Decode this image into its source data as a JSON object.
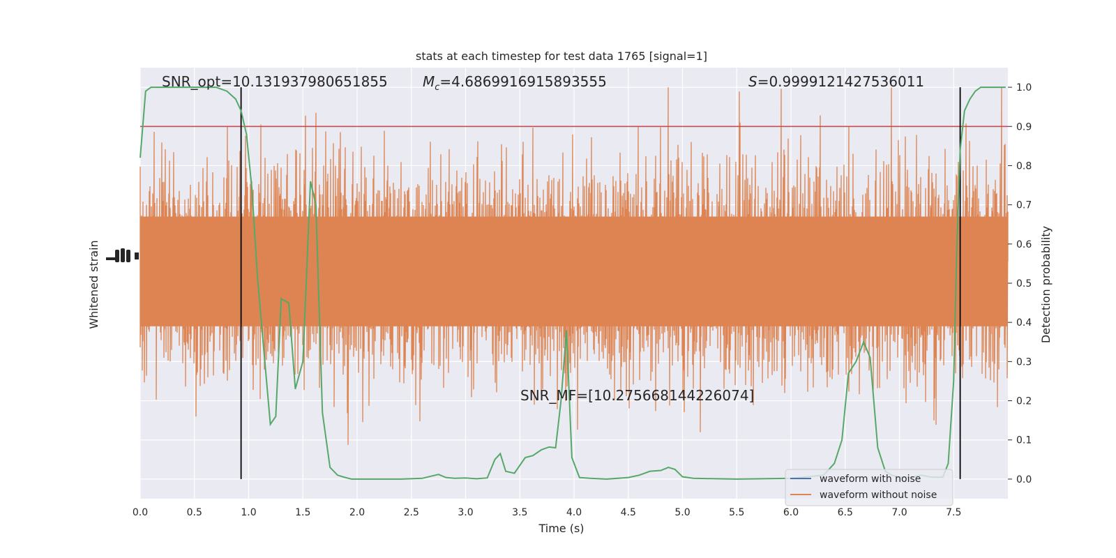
{
  "chart_data": {
    "type": "line",
    "title": "stats at each timestep for test data 1765 [signal=1]",
    "xlabel": "Time (s)",
    "ylabel_left": "Whitened strain",
    "ylabel_right": "Detection probability",
    "xlim": [
      0.0,
      8.0
    ],
    "ylim_right": [
      -0.05,
      1.05
    ],
    "xticks": [
      "0.0",
      "0.5",
      "1.0",
      "1.5",
      "2.0",
      "2.5",
      "3.0",
      "3.5",
      "4.0",
      "4.5",
      "5.0",
      "5.5",
      "6.0",
      "6.5",
      "7.0",
      "7.5"
    ],
    "yticks_right": [
      "0.0",
      "0.1",
      "0.2",
      "0.3",
      "0.4",
      "0.5",
      "0.6",
      "0.7",
      "0.8",
      "0.9",
      "1.0"
    ],
    "grid": true,
    "legend_placement": "lower-right",
    "annotations": {
      "snr_opt": "SNR_opt=10.131937980651855",
      "mc_symbol": "M",
      "mc_sub": "c",
      "mc_value": "=4.6869916915893555",
      "s_symbol": "S",
      "s_value": "=0.9999121427536011",
      "snr_mf": "SNR_MF=[10.275668144226074]"
    },
    "threshold": 0.9,
    "vertical_lines": [
      0.93,
      7.56
    ],
    "series": [
      {
        "name": "waveform with noise",
        "color": "#4c72b0"
      },
      {
        "name": "waveform without noise",
        "color": "#dd8452"
      }
    ],
    "probability": {
      "color": "#55a868",
      "x": [
        0.0,
        0.05,
        0.1,
        0.2,
        0.3,
        0.4,
        0.5,
        0.6,
        0.7,
        0.8,
        0.88,
        0.93,
        0.98,
        1.03,
        1.08,
        1.13,
        1.2,
        1.25,
        1.3,
        1.37,
        1.43,
        1.5,
        1.57,
        1.62,
        1.68,
        1.75,
        1.82,
        1.88,
        1.95,
        2.0,
        2.2,
        2.4,
        2.6,
        2.75,
        2.82,
        2.9,
        3.0,
        3.1,
        3.2,
        3.27,
        3.32,
        3.37,
        3.45,
        3.55,
        3.62,
        3.7,
        3.77,
        3.83,
        3.88,
        3.93,
        3.98,
        4.05,
        4.15,
        4.3,
        4.5,
        4.6,
        4.7,
        4.8,
        4.87,
        4.93,
        5.0,
        5.1,
        5.5,
        6.0,
        6.3,
        6.4,
        6.47,
        6.53,
        6.6,
        6.67,
        6.73,
        6.8,
        6.87,
        6.93,
        7.0,
        7.1,
        7.2,
        7.3,
        7.4,
        7.45,
        7.5,
        7.53,
        7.56,
        7.6,
        7.65,
        7.7,
        7.75,
        7.8,
        7.9,
        7.98
      ],
      "y": [
        0.82,
        0.99,
        1.0,
        1.0,
        1.0,
        1.0,
        1.0,
        1.0,
        1.0,
        0.99,
        0.97,
        0.94,
        0.88,
        0.74,
        0.52,
        0.36,
        0.14,
        0.16,
        0.46,
        0.45,
        0.23,
        0.3,
        0.76,
        0.7,
        0.17,
        0.03,
        0.01,
        0.005,
        0.0,
        0.0,
        0.0,
        0.0,
        0.002,
        0.012,
        0.004,
        0.002,
        0.003,
        0.001,
        0.003,
        0.05,
        0.065,
        0.02,
        0.015,
        0.055,
        0.06,
        0.075,
        0.082,
        0.08,
        0.2,
        0.38,
        0.055,
        0.004,
        0.002,
        0.0,
        0.004,
        0.01,
        0.02,
        0.022,
        0.03,
        0.025,
        0.006,
        0.002,
        0.0,
        0.002,
        0.01,
        0.04,
        0.1,
        0.27,
        0.3,
        0.35,
        0.31,
        0.08,
        0.02,
        0.01,
        0.005,
        0.004,
        0.01,
        0.005,
        0.005,
        0.04,
        0.25,
        0.6,
        0.84,
        0.94,
        0.97,
        0.99,
        1.0,
        1.0,
        1.0,
        1.0
      ]
    }
  }
}
